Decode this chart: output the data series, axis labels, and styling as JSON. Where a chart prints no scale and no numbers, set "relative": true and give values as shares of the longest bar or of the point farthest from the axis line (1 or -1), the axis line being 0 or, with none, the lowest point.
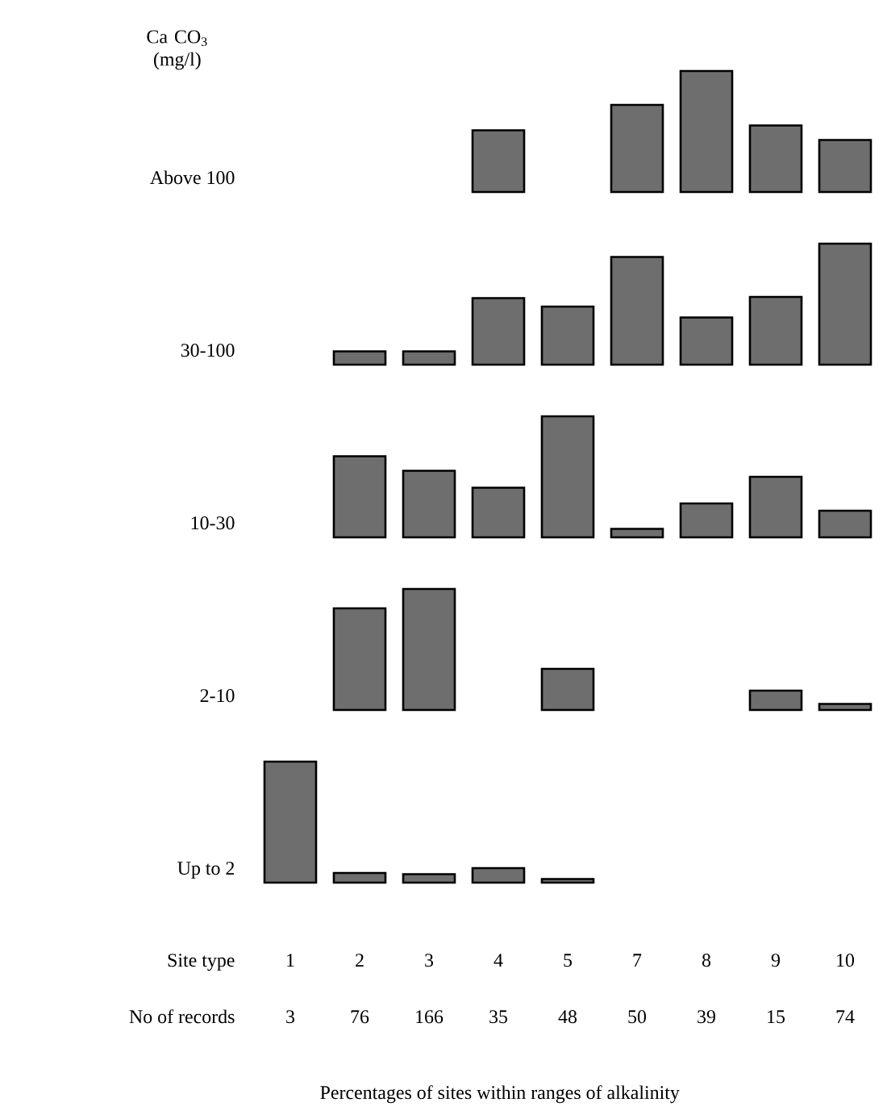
{
  "chart_data": [
    {
      "type": "bar",
      "relative": true,
      "title": "Ca CO$_{3}$ (mg/l)",
      "ylabel": "Above 100",
      "categories": [
        "1",
        "2",
        "3",
        "4",
        "5",
        "7",
        "8",
        "9",
        "10"
      ],
      "values": [
        null,
        null,
        null,
        0.51,
        null,
        0.72,
        1,
        0.55,
        0.43
      ],
      "color": "#6e6e6e",
      "tick_labels": false
    },
    {
      "type": "bar",
      "relative": true,
      "ylabel": "30-100",
      "categories": [
        "1",
        "2",
        "3",
        "4",
        "5",
        "7",
        "8",
        "9",
        "10"
      ],
      "values": [
        null,
        0.11,
        0.11,
        0.55,
        0.48,
        0.89,
        0.39,
        0.56,
        1
      ],
      "color": "#6e6e6e",
      "tick_labels": false
    },
    {
      "type": "bar",
      "relative": true,
      "ylabel": "10-30",
      "categories": [
        "1",
        "2",
        "3",
        "4",
        "5",
        "7",
        "8",
        "9",
        "10"
      ],
      "values": [
        null,
        0.67,
        0.55,
        0.41,
        1,
        0.07,
        0.28,
        0.5,
        0.22
      ],
      "color": "#6e6e6e",
      "tick_labels": false
    },
    {
      "type": "bar",
      "relative": true,
      "ylabel": "2-10",
      "categories": [
        "1",
        "2",
        "3",
        "4",
        "5",
        "7",
        "8",
        "9",
        "10"
      ],
      "values": [
        null,
        0.84,
        1,
        null,
        0.34,
        null,
        null,
        0.16,
        0.05
      ],
      "color": "#6e6e6e",
      "tick_labels": false
    },
    {
      "type": "bar",
      "relative": true,
      "ylabel": "Up to 2",
      "xlabel": "Percentages of sites within ranges of alkalinity",
      "categories": [
        "1",
        "2",
        "3",
        "4",
        "5",
        "7",
        "8",
        "9",
        "10"
      ],
      "values": [
        1,
        0.08,
        0.07,
        0.12,
        0.03,
        null,
        null,
        null,
        null
      ],
      "color": "#6e6e6e",
      "tick_labels": "x",
      "annotations": [
        "Site type",
        "No of records",
        "3",
        "76",
        "166",
        "35",
        "48",
        "50",
        "39",
        "15",
        "74"
      ]
    }
  ]
}
